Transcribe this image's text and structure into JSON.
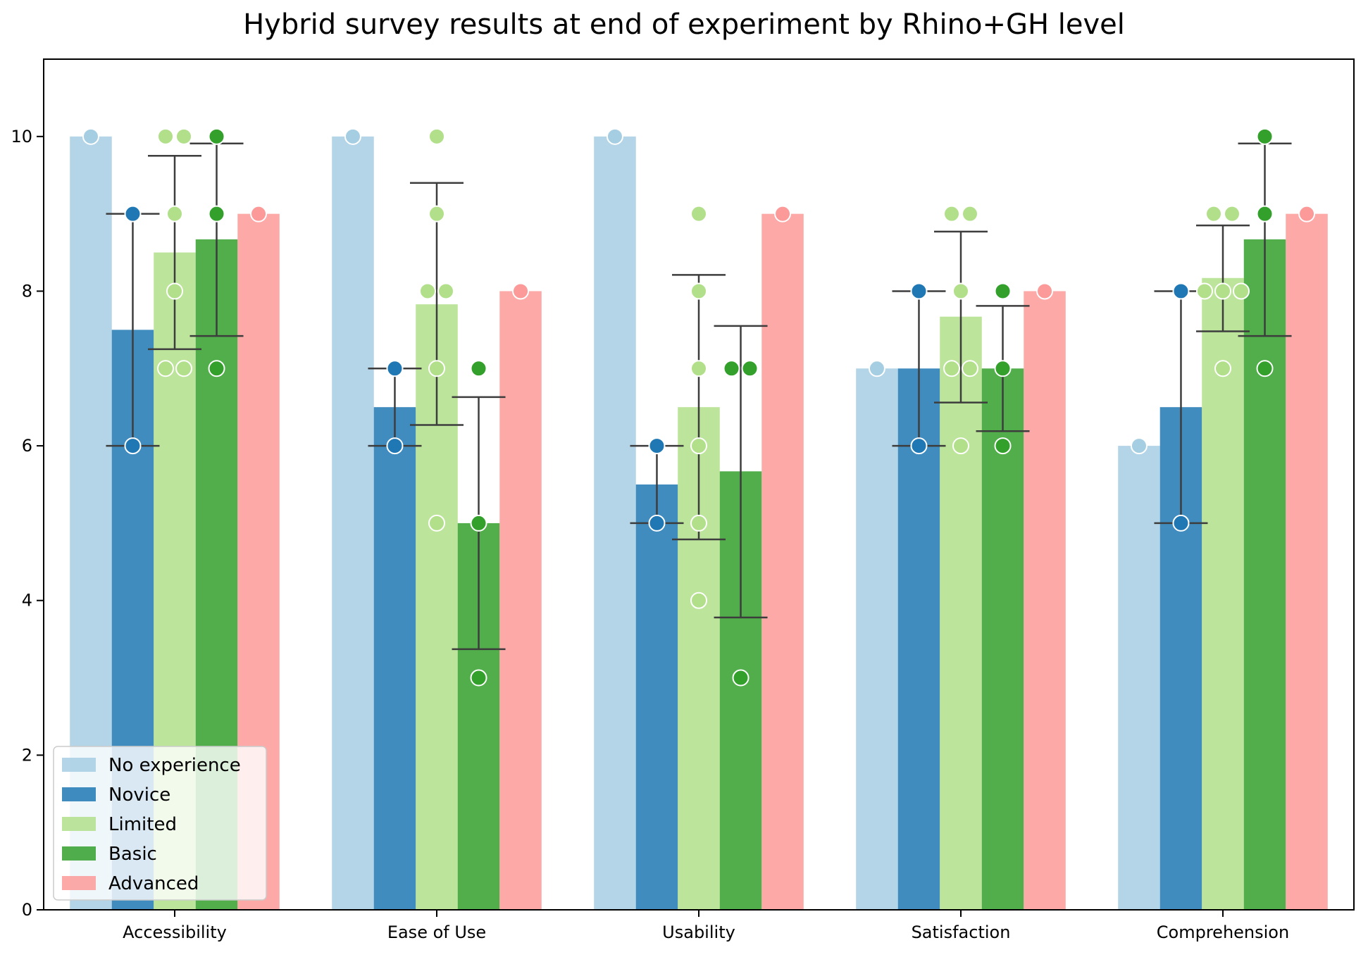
{
  "chart_data": {
    "type": "bar",
    "title": "Hybrid survey results at end of experiment by Rhino+GH level",
    "xlabel": "",
    "ylabel": "",
    "ylim": [
      0,
      11
    ],
    "yticks": [
      0,
      2,
      4,
      6,
      8,
      10
    ],
    "grid": false,
    "legend_position": "bottom-left",
    "categories": [
      "Accessibility",
      "Ease of Use",
      "Usability",
      "Satisfaction",
      "Comprehension"
    ],
    "series": [
      {
        "name": "No experience",
        "color": "#a6cee3",
        "values": [
          10,
          10,
          10,
          7,
          6
        ],
        "error": [
          null,
          null,
          null,
          null,
          null
        ],
        "points": [
          [
            10
          ],
          [
            10
          ],
          [
            10
          ],
          [
            7
          ],
          [
            6
          ]
        ]
      },
      {
        "name": "Novice",
        "color": "#1f78b4",
        "values": [
          7.5,
          6.5,
          5.5,
          7,
          6.5
        ],
        "error": [
          [
            6,
            9
          ],
          [
            6,
            7
          ],
          [
            5,
            6
          ],
          [
            6,
            8
          ],
          [
            5,
            8
          ]
        ],
        "points": [
          [
            9,
            6
          ],
          [
            7,
            6
          ],
          [
            6,
            5
          ],
          [
            8,
            6
          ],
          [
            8,
            5
          ]
        ]
      },
      {
        "name": "Limited",
        "color": "#b2df8a",
        "values": [
          8.5,
          7.83,
          6.5,
          7.67,
          8.17
        ],
        "error": [
          [
            7.25,
            9.75
          ],
          [
            6.27,
            9.4
          ],
          [
            4.79,
            8.21
          ],
          [
            6.56,
            8.77
          ],
          [
            7.48,
            8.85
          ]
        ],
        "points": [
          [
            10,
            10,
            9,
            8,
            7,
            7
          ],
          [
            10,
            9,
            8,
            8,
            7,
            5
          ],
          [
            9,
            8,
            7,
            6,
            5,
            4
          ],
          [
            9,
            9,
            8,
            7,
            7,
            6
          ],
          [
            9,
            9,
            8,
            8,
            8,
            7
          ]
        ]
      },
      {
        "name": "Basic",
        "color": "#33a02c",
        "values": [
          8.67,
          5,
          5.67,
          7,
          8.67
        ],
        "error": [
          [
            7.42,
            9.91
          ],
          [
            3.37,
            6.63
          ],
          [
            3.78,
            7.55
          ],
          [
            6.19,
            7.81
          ],
          [
            7.42,
            9.91
          ]
        ],
        "points": [
          [
            10,
            9,
            7
          ],
          [
            7,
            5,
            3
          ],
          [
            7,
            7,
            3
          ],
          [
            8,
            7,
            6
          ],
          [
            10,
            9,
            7
          ]
        ]
      },
      {
        "name": "Advanced",
        "color": "#fb9a99",
        "values": [
          9,
          8,
          9,
          8,
          9
        ],
        "error": [
          null,
          null,
          null,
          null,
          null
        ],
        "points": [
          [
            9
          ],
          [
            8
          ],
          [
            9
          ],
          [
            8
          ],
          [
            9
          ]
        ]
      }
    ]
  }
}
